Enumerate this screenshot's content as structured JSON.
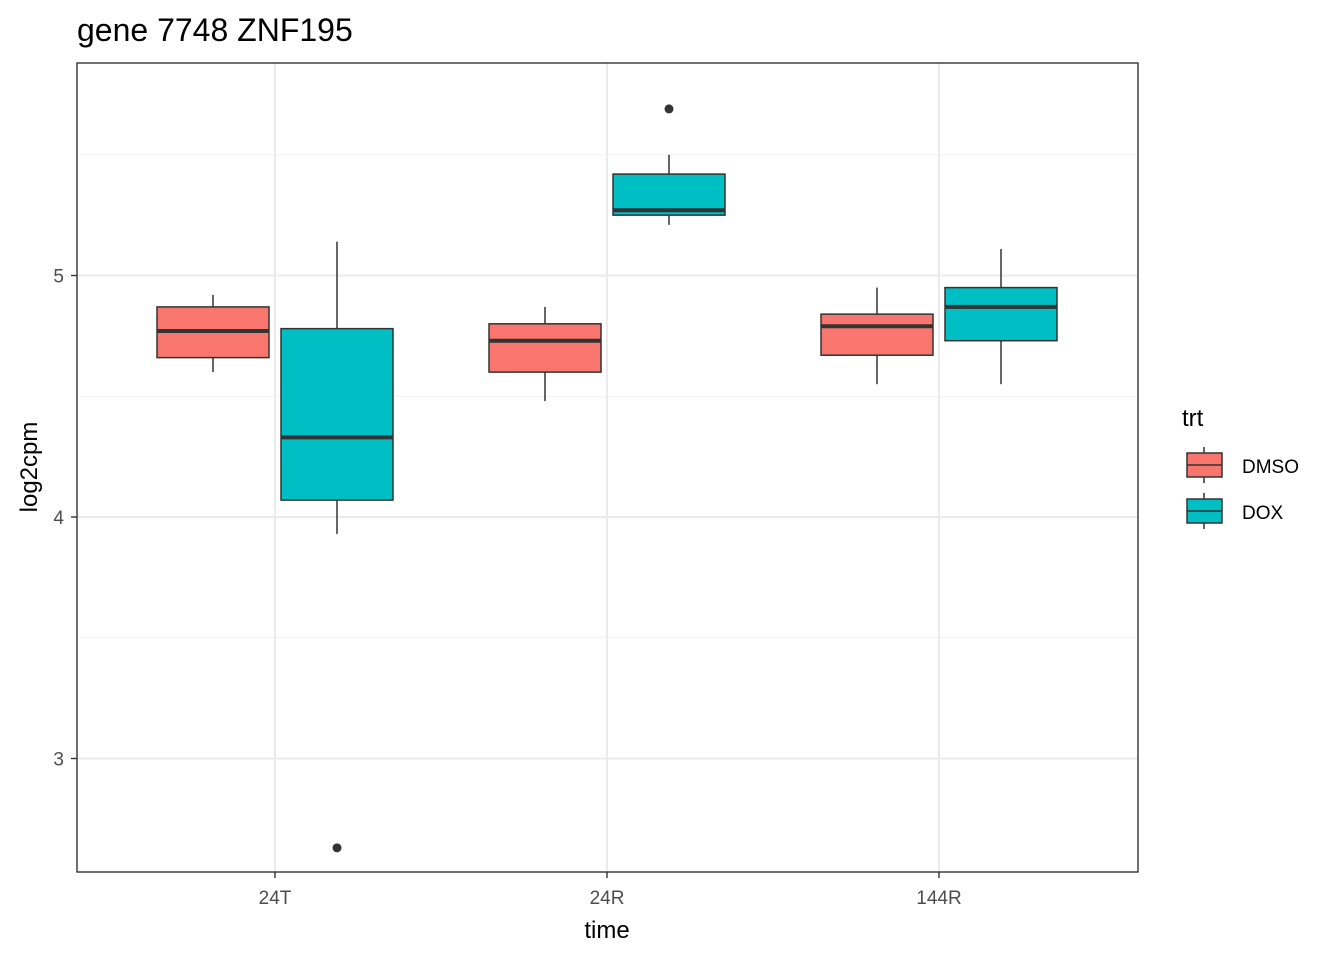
{
  "chart_data": {
    "type": "boxplot",
    "title": "gene 7748 ZNF195",
    "xlabel": "time",
    "ylabel": "log2cpm",
    "categories": [
      "24T",
      "24R",
      "144R"
    ],
    "y_ticks": [
      3,
      4,
      5
    ],
    "ylim": [
      2.53,
      5.88
    ],
    "grid": true,
    "legend": {
      "title": "trt",
      "placement": "right",
      "entries": [
        "DMSO",
        "DOX"
      ]
    },
    "series": [
      {
        "name": "DMSO",
        "color": "#F8766D",
        "boxes": [
          {
            "category": "24T",
            "whisker_low": 4.6,
            "q1": 4.66,
            "median": 4.77,
            "q3": 4.87,
            "whisker_high": 4.92,
            "outliers": []
          },
          {
            "category": "24R",
            "whisker_low": 4.48,
            "q1": 4.6,
            "median": 4.73,
            "q3": 4.8,
            "whisker_high": 4.87,
            "outliers": []
          },
          {
            "category": "144R",
            "whisker_low": 4.55,
            "q1": 4.67,
            "median": 4.79,
            "q3": 4.84,
            "whisker_high": 4.95,
            "outliers": []
          }
        ]
      },
      {
        "name": "DOX",
        "color": "#00BFC4",
        "boxes": [
          {
            "category": "24T",
            "whisker_low": 3.93,
            "q1": 4.07,
            "median": 4.33,
            "q3": 4.78,
            "whisker_high": 5.14,
            "outliers": [
              2.63
            ]
          },
          {
            "category": "24R",
            "whisker_low": 5.21,
            "q1": 5.25,
            "median": 5.27,
            "q3": 5.42,
            "whisker_high": 5.5,
            "outliers": [
              5.69
            ]
          },
          {
            "category": "144R",
            "whisker_low": 4.55,
            "q1": 4.73,
            "median": 4.87,
            "q3": 4.95,
            "whisker_high": 5.11,
            "outliers": []
          }
        ]
      }
    ]
  }
}
